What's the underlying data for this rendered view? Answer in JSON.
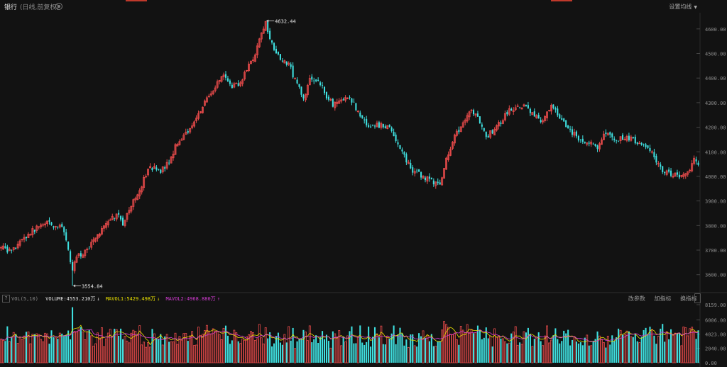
{
  "header": {
    "title": "银行",
    "subtitle": "(日线,前复权)",
    "ma_setting_label": "设置均线"
  },
  "volume_panel": {
    "help_label": "?",
    "indicator_label": "VOL(5,10)",
    "volume_text": "VOLUME:4553.210万",
    "volume_arrow": "↓",
    "mavol1_text": "MAVOL1:5429.498万",
    "mavol1_arrow": "↓",
    "mavol2_text": "MAVOL2:4968.880万",
    "mavol2_arrow": "↑",
    "buttons": [
      "改参数",
      "加指标",
      "换指标"
    ]
  },
  "colors": {
    "background": "#121212",
    "up": "#e64a4a",
    "down": "#3fe0e0",
    "mavol1": "#e8e000",
    "mavol2": "#d23cd2",
    "axis_text": "#8c8c8c"
  },
  "chart_data": [
    {
      "type": "candlestick",
      "title": "银行",
      "subtitle": "(日线,前复权)",
      "y_ticks": [
        "3600.00",
        "3700.00",
        "3800.00",
        "3900.00",
        "4000.00",
        "4100.00",
        "4200.00",
        "4300.00",
        "4400.00",
        "4500.00",
        "4600.00"
      ],
      "ylim": [
        3530,
        4660
      ],
      "high_label": "4632.44",
      "low_label": "3554.84",
      "close_path": [
        [
          0,
          3710
        ],
        [
          5,
          3690
        ],
        [
          9,
          3735
        ],
        [
          14,
          3770
        ],
        [
          18,
          3800
        ],
        [
          22,
          3810
        ],
        [
          26,
          3795
        ],
        [
          29,
          3805
        ],
        [
          34,
          3625
        ],
        [
          37,
          3680
        ],
        [
          41,
          3700
        ],
        [
          46,
          3760
        ],
        [
          51,
          3820
        ],
        [
          56,
          3850
        ],
        [
          58,
          3800
        ],
        [
          62,
          3880
        ],
        [
          66,
          3950
        ],
        [
          71,
          4040
        ],
        [
          76,
          4020
        ],
        [
          80,
          4060
        ],
        [
          84,
          4140
        ],
        [
          89,
          4180
        ],
        [
          93,
          4230
        ],
        [
          97,
          4310
        ],
        [
          102,
          4360
        ],
        [
          106,
          4420
        ],
        [
          110,
          4370
        ],
        [
          114,
          4380
        ],
        [
          118,
          4450
        ],
        [
          121,
          4500
        ],
        [
          124,
          4580
        ],
        [
          126,
          4620
        ],
        [
          129,
          4540
        ],
        [
          133,
          4470
        ],
        [
          137,
          4460
        ],
        [
          140,
          4390
        ],
        [
          144,
          4320
        ],
        [
          147,
          4390
        ],
        [
          151,
          4400
        ],
        [
          154,
          4340
        ],
        [
          158,
          4290
        ],
        [
          162,
          4320
        ],
        [
          167,
          4310
        ],
        [
          171,
          4240
        ],
        [
          176,
          4200
        ],
        [
          181,
          4210
        ],
        [
          186,
          4190
        ],
        [
          190,
          4110
        ],
        [
          196,
          4020
        ],
        [
          201,
          4000
        ],
        [
          205,
          3980
        ],
        [
          209,
          3970
        ],
        [
          212,
          4070
        ],
        [
          216,
          4160
        ],
        [
          220,
          4220
        ],
        [
          223,
          4270
        ],
        [
          227,
          4240
        ],
        [
          231,
          4160
        ],
        [
          236,
          4200
        ],
        [
          241,
          4260
        ],
        [
          245,
          4280
        ],
        [
          249,
          4290
        ],
        [
          254,
          4250
        ],
        [
          258,
          4220
        ],
        [
          262,
          4290
        ],
        [
          266,
          4240
        ],
        [
          271,
          4190
        ],
        [
          275,
          4150
        ],
        [
          280,
          4140
        ],
        [
          284,
          4120
        ],
        [
          288,
          4180
        ],
        [
          292,
          4150
        ],
        [
          297,
          4160
        ],
        [
          301,
          4150
        ],
        [
          306,
          4120
        ],
        [
          310,
          4090
        ],
        [
          314,
          4030
        ],
        [
          318,
          4010
        ],
        [
          323,
          4000
        ],
        [
          327,
          4010
        ],
        [
          330,
          4080
        ],
        [
          332,
          4040
        ]
      ]
    },
    {
      "type": "bar",
      "title": "VOL(5,10)",
      "unit": "万",
      "y_ticks": [
        "0.00",
        "2040.00",
        "4023.00",
        "6006.00",
        "8159.00"
      ],
      "ylim": [
        0,
        8159
      ],
      "series": [
        {
          "name": "VOLUME",
          "last": 4553.21
        },
        {
          "name": "MAVOL1",
          "last": 5429.498
        },
        {
          "name": "MAVOL2",
          "last": 4968.88
        }
      ]
    }
  ]
}
